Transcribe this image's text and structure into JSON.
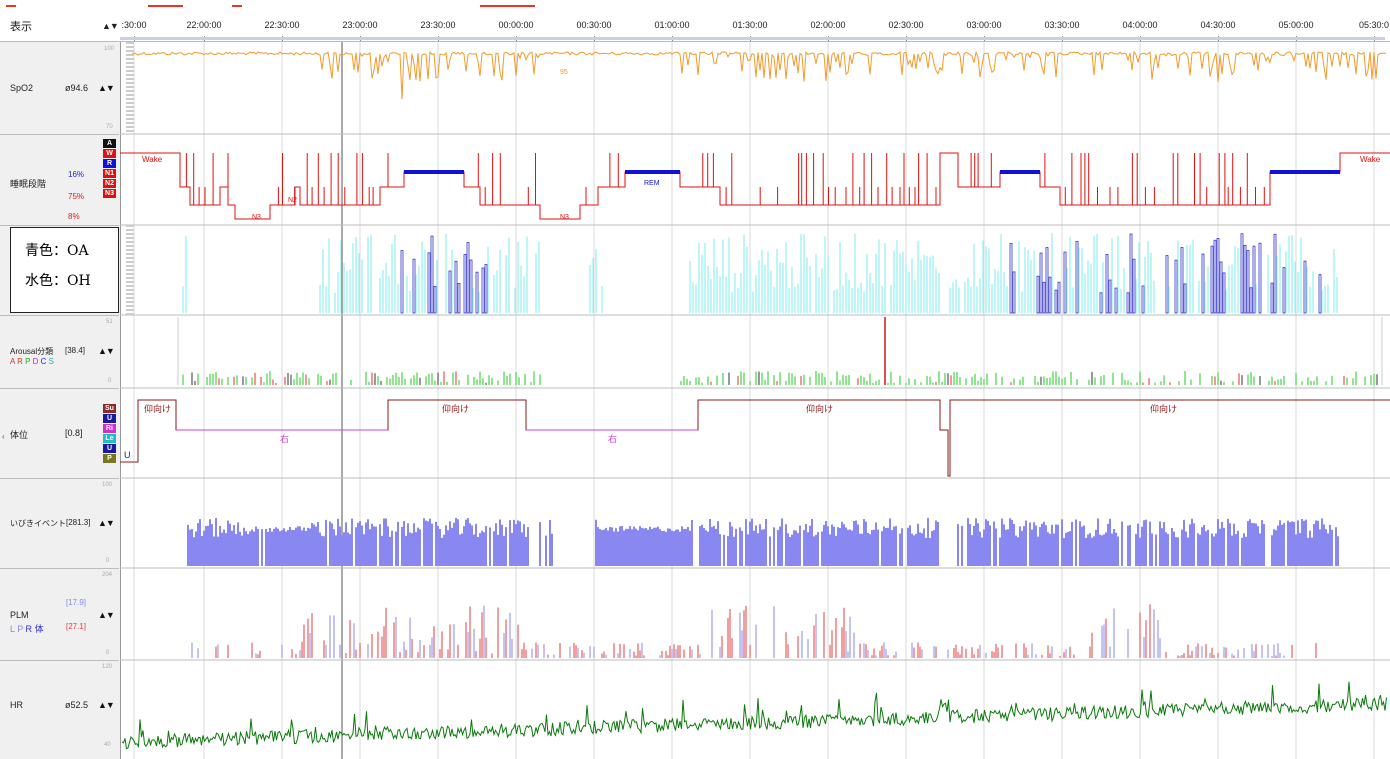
{
  "header": {
    "label": "表示",
    "time_ticks": [
      ":30:00",
      "22:00:00",
      "22:30:00",
      "23:00:00",
      "23:30:00",
      "00:00:00",
      "00:30:00",
      "01:00:00",
      "01:30:00",
      "02:00:00",
      "02:30:00",
      "03:00:00",
      "03:30:00",
      "04:00:00",
      "04:30:00",
      "05:00:00",
      "05:30:0"
    ]
  },
  "lanes": {
    "spo2": {
      "name": "SpO2",
      "value": "ø94.6",
      "scale_top": "100",
      "scale_bottom": "70",
      "mid_label": "95"
    },
    "sleep_stage": {
      "name": "睡眠段階",
      "pct_rem": "16%",
      "pct_n": "75%",
      "pct_n3": "8%",
      "legend": [
        "A",
        "W",
        "R",
        "N1",
        "N2",
        "N3"
      ],
      "labels": {
        "wake": "Wake",
        "n3": "N3",
        "n2": "N2",
        "rem": "REM",
        "wake_end": "Wake"
      }
    },
    "apnea": {
      "legend_line1": "青色：OA",
      "legend_line2": "水色：OH"
    },
    "arousal": {
      "name": "Arousal分類",
      "value": "[38.4]",
      "sub_letters": [
        "A",
        "R",
        "P",
        "D",
        "C",
        "S"
      ],
      "scale_top": "51",
      "scale_bottom": "0"
    },
    "position": {
      "name": "体位",
      "value": "[0.8]",
      "legend": [
        "Su",
        "U",
        "Ri",
        "Le",
        "U",
        "P"
      ],
      "labels": {
        "u": "U",
        "supine": "仰向け",
        "right": "右"
      }
    },
    "snore": {
      "name": "いびきイベント",
      "value": "[281.3]",
      "scale_top": "100",
      "scale_bottom": "0"
    },
    "plm": {
      "name": "PLM",
      "value_l": "[17.9]",
      "value_r": "[27.1]",
      "sub_letters": [
        "L",
        "P",
        "R",
        "体"
      ],
      "scale_top": "204",
      "scale_bottom": "0"
    },
    "hr": {
      "name": "HR",
      "value": "ø52.5",
      "scale_top": "120",
      "scale_bottom": "40"
    }
  },
  "colors": {
    "spo2": "#f39a2b",
    "stage_red": "#e01010",
    "rem_blue": "#1010d8",
    "oa": "#3333cc",
    "oh": "#8ff0f0",
    "arousal_green": "#22cc22",
    "position_line": "#8b1a1a",
    "right_line": "#cc44cc",
    "snore": "#1010e0",
    "plm_red": "#e04040",
    "plm_blue": "#8888e8",
    "hr": "#0a7a0a"
  }
}
